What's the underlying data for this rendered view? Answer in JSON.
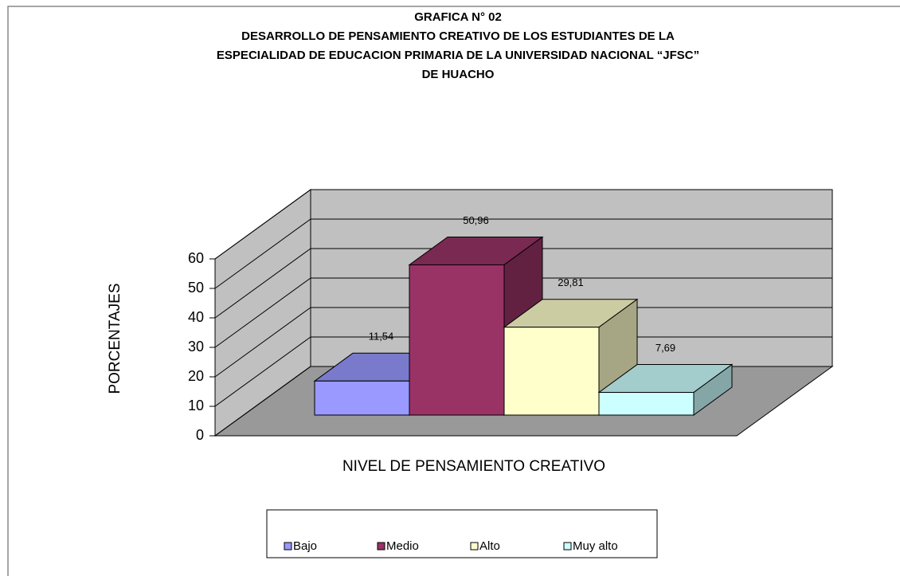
{
  "chart_data": {
    "type": "bar3d",
    "title": [
      "GRAFICA N° 02",
      "DESARROLLO DE PENSAMIENTO CREATIVO DE LOS ESTUDIANTES  DE LA",
      "ESPECIALIDAD DE EDUCACION  PRIMARIA  DE LA UNIVERSIDAD NACIONAL “JFSC”",
      "DE HUACHO"
    ],
    "y_label": "PORCENTAJES",
    "x_label": "NIVEL DE PENSAMIENTO CREATIVO",
    "categories": [
      "Bajo",
      "Medio",
      "Alto",
      "Muy alto"
    ],
    "values": [
      11.54,
      50.96,
      29.81,
      7.69
    ],
    "value_labels": [
      "11,54",
      "50,96",
      "29,81",
      "7,69"
    ],
    "colors": [
      "#9999ff",
      "#993366",
      "#ffffcc",
      "#ccffff"
    ],
    "ylim": [
      0,
      60
    ],
    "yticks": [
      0,
      10,
      20,
      30,
      40,
      50,
      60
    ],
    "grid": true,
    "legend": "bottom"
  }
}
